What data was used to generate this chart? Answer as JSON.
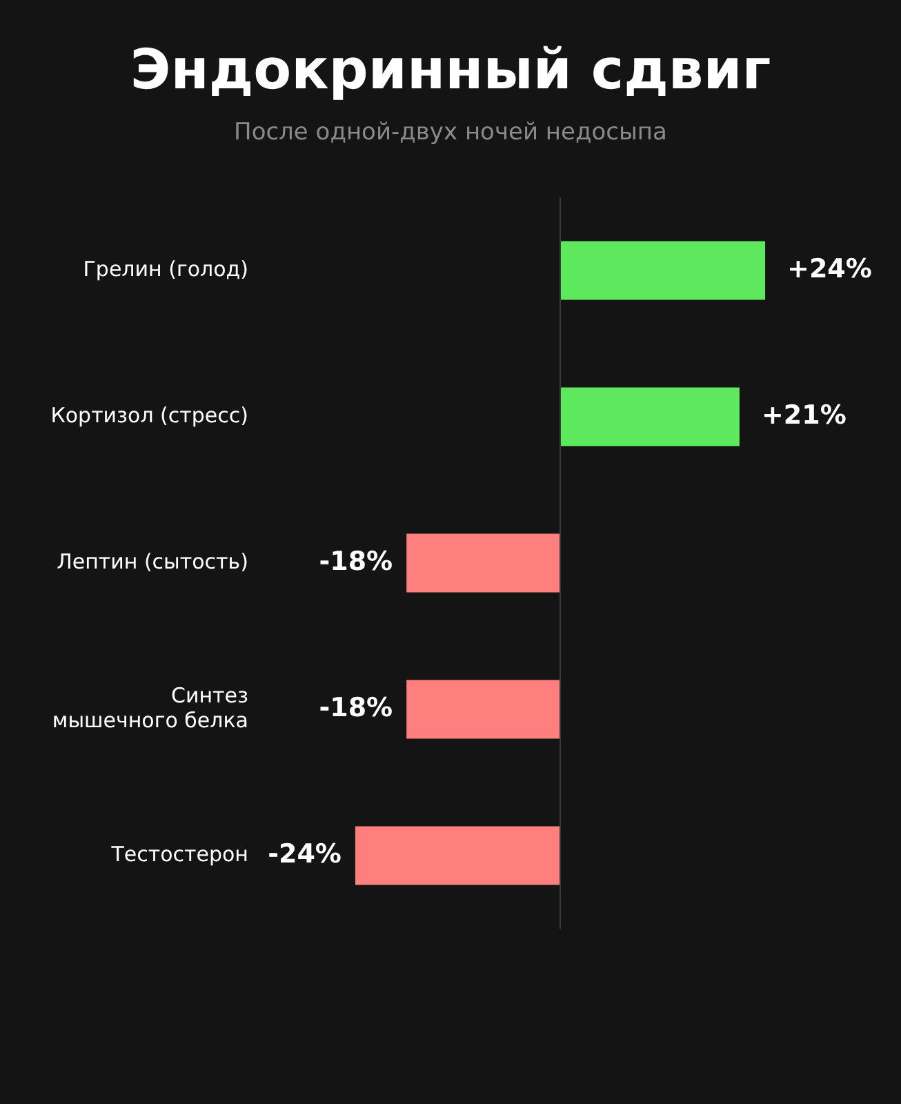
{
  "chart_data": {
    "type": "bar",
    "orientation": "horizontal",
    "title": "Эндокринный сдвиг",
    "subtitle": "После одной-двух ночей недосыпа",
    "categories": [
      "Грелин (голод)",
      "Кортизол (стресс)",
      "Лептин (сытость)",
      "Синтез мышечного белка",
      "Тестостерон"
    ],
    "values": [
      24,
      21,
      -18,
      -18,
      -24
    ],
    "colors": [
      "#5de85d",
      "#5de85d",
      "#ff7f7f",
      "#ff7f7f",
      "#ff7f7f"
    ],
    "value_labels": [
      "+24%",
      "+21%",
      "-18%",
      "-18%",
      "-24%"
    ]
  }
}
